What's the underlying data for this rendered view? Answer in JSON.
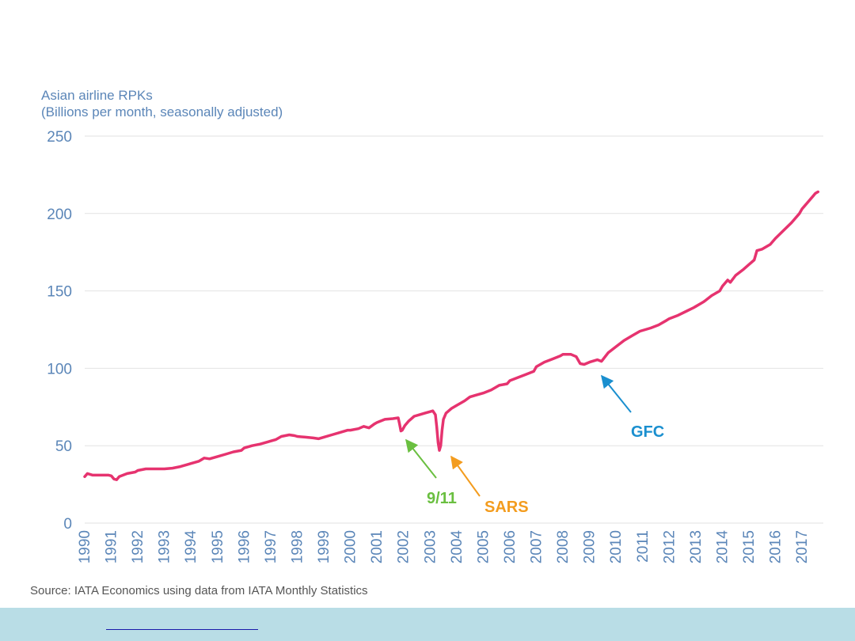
{
  "chart_data": {
    "type": "line",
    "ylabel_lines": [
      "Asian airline RPKs",
      "(Billions per month, seasonally adjusted)"
    ],
    "ylim": [
      0,
      250
    ],
    "yticks": [
      0,
      50,
      100,
      150,
      200,
      250
    ],
    "xticks": [
      "1990",
      "1991",
      "1992",
      "1993",
      "1994",
      "1995",
      "1996",
      "1997",
      "1998",
      "1999",
      "2000",
      "2001",
      "2002",
      "2003",
      "2004",
      "2005",
      "2006",
      "2007",
      "2008",
      "2009",
      "2010",
      "2011",
      "2012",
      "2013",
      "2014",
      "2015",
      "2016",
      "2017"
    ],
    "grid": true,
    "series": [
      {
        "color": "#e6336f",
        "points": [
          [
            1990.0,
            30
          ],
          [
            1990.1,
            32
          ],
          [
            1990.3,
            31
          ],
          [
            1990.6,
            31
          ],
          [
            1990.9,
            31
          ],
          [
            1991.0,
            30.5
          ],
          [
            1991.1,
            28.5
          ],
          [
            1991.2,
            28
          ],
          [
            1991.3,
            30
          ],
          [
            1991.6,
            32
          ],
          [
            1991.9,
            33
          ],
          [
            1992.0,
            34
          ],
          [
            1992.3,
            35
          ],
          [
            1992.6,
            35
          ],
          [
            1992.9,
            35
          ],
          [
            1993.0,
            35
          ],
          [
            1993.3,
            35.5
          ],
          [
            1993.6,
            36.5
          ],
          [
            1993.9,
            38
          ],
          [
            1994.0,
            38.5
          ],
          [
            1994.3,
            40
          ],
          [
            1994.5,
            42
          ],
          [
            1994.7,
            41.5
          ],
          [
            1995.0,
            43
          ],
          [
            1995.3,
            44.5
          ],
          [
            1995.6,
            46
          ],
          [
            1995.9,
            47
          ],
          [
            1996.0,
            48.5
          ],
          [
            1996.3,
            50
          ],
          [
            1996.6,
            51
          ],
          [
            1996.9,
            52.5
          ],
          [
            1997.0,
            53
          ],
          [
            1997.2,
            54
          ],
          [
            1997.4,
            56
          ],
          [
            1997.7,
            57
          ],
          [
            1997.9,
            56.5
          ],
          [
            1998.0,
            56
          ],
          [
            1998.3,
            55.5
          ],
          [
            1998.6,
            55
          ],
          [
            1998.8,
            54.5
          ],
          [
            1999.0,
            55.5
          ],
          [
            1999.3,
            57
          ],
          [
            1999.6,
            58.5
          ],
          [
            1999.9,
            60
          ],
          [
            2000.0,
            60
          ],
          [
            2000.3,
            61
          ],
          [
            2000.5,
            62.5
          ],
          [
            2000.7,
            61.5
          ],
          [
            2000.9,
            64
          ],
          [
            2001.0,
            65
          ],
          [
            2001.3,
            67
          ],
          [
            2001.6,
            67.5
          ],
          [
            2001.8,
            68
          ],
          [
            2001.85,
            64
          ],
          [
            2001.9,
            59.5
          ],
          [
            2001.95,
            60
          ],
          [
            2002.05,
            63
          ],
          [
            2002.2,
            66
          ],
          [
            2002.4,
            69
          ],
          [
            2002.6,
            70
          ],
          [
            2002.8,
            71
          ],
          [
            2003.0,
            72
          ],
          [
            2003.1,
            72.5
          ],
          [
            2003.2,
            70
          ],
          [
            2003.25,
            62
          ],
          [
            2003.3,
            52
          ],
          [
            2003.35,
            47
          ],
          [
            2003.4,
            50
          ],
          [
            2003.45,
            60
          ],
          [
            2003.5,
            67
          ],
          [
            2003.6,
            71
          ],
          [
            2003.8,
            74
          ],
          [
            2004.0,
            76
          ],
          [
            2004.3,
            79
          ],
          [
            2004.5,
            81.5
          ],
          [
            2004.7,
            82.5
          ],
          [
            2005.0,
            84
          ],
          [
            2005.3,
            86
          ],
          [
            2005.6,
            89
          ],
          [
            2005.9,
            90
          ],
          [
            2006.0,
            92
          ],
          [
            2006.3,
            94
          ],
          [
            2006.6,
            96
          ],
          [
            2006.9,
            98
          ],
          [
            2007.0,
            101
          ],
          [
            2007.3,
            104
          ],
          [
            2007.6,
            106
          ],
          [
            2007.9,
            108
          ],
          [
            2008.0,
            109
          ],
          [
            2008.3,
            109
          ],
          [
            2008.5,
            107.5
          ],
          [
            2008.65,
            103
          ],
          [
            2008.8,
            102.5
          ],
          [
            2009.0,
            104
          ],
          [
            2009.3,
            105.5
          ],
          [
            2009.45,
            104.5
          ],
          [
            2009.7,
            110
          ],
          [
            2010.0,
            114
          ],
          [
            2010.3,
            118
          ],
          [
            2010.6,
            121
          ],
          [
            2010.9,
            124
          ],
          [
            2011.0,
            124.5
          ],
          [
            2011.3,
            126
          ],
          [
            2011.6,
            128
          ],
          [
            2011.9,
            131
          ],
          [
            2012.0,
            132
          ],
          [
            2012.3,
            134
          ],
          [
            2012.6,
            136.5
          ],
          [
            2012.9,
            139
          ],
          [
            2013.0,
            140
          ],
          [
            2013.3,
            143
          ],
          [
            2013.6,
            147
          ],
          [
            2013.9,
            150
          ],
          [
            2014.0,
            153
          ],
          [
            2014.2,
            157
          ],
          [
            2014.3,
            155.5
          ],
          [
            2014.5,
            160
          ],
          [
            2014.8,
            164
          ],
          [
            2015.0,
            167
          ],
          [
            2015.2,
            170
          ],
          [
            2015.3,
            176
          ],
          [
            2015.5,
            177
          ],
          [
            2015.8,
            180
          ],
          [
            2016.0,
            184
          ],
          [
            2016.3,
            189
          ],
          [
            2016.6,
            194
          ],
          [
            2016.9,
            200
          ],
          [
            2017.0,
            203
          ],
          [
            2017.2,
            207
          ],
          [
            2017.4,
            211
          ],
          [
            2017.5,
            213
          ],
          [
            2017.6,
            214
          ]
        ]
      }
    ],
    "annotations": [
      {
        "label": "9/11",
        "color": "#6abf40",
        "target": [
          2001.95,
          56
        ]
      },
      {
        "label": "SARS",
        "color": "#f39c1e",
        "target": [
          2003.5,
          47
        ]
      },
      {
        "label": "GFC",
        "color": "#1a8fcf",
        "target": [
          2009.25,
          98
        ]
      }
    ]
  },
  "source_text": "Source: IATA Economics using data from IATA Monthly Statistics"
}
